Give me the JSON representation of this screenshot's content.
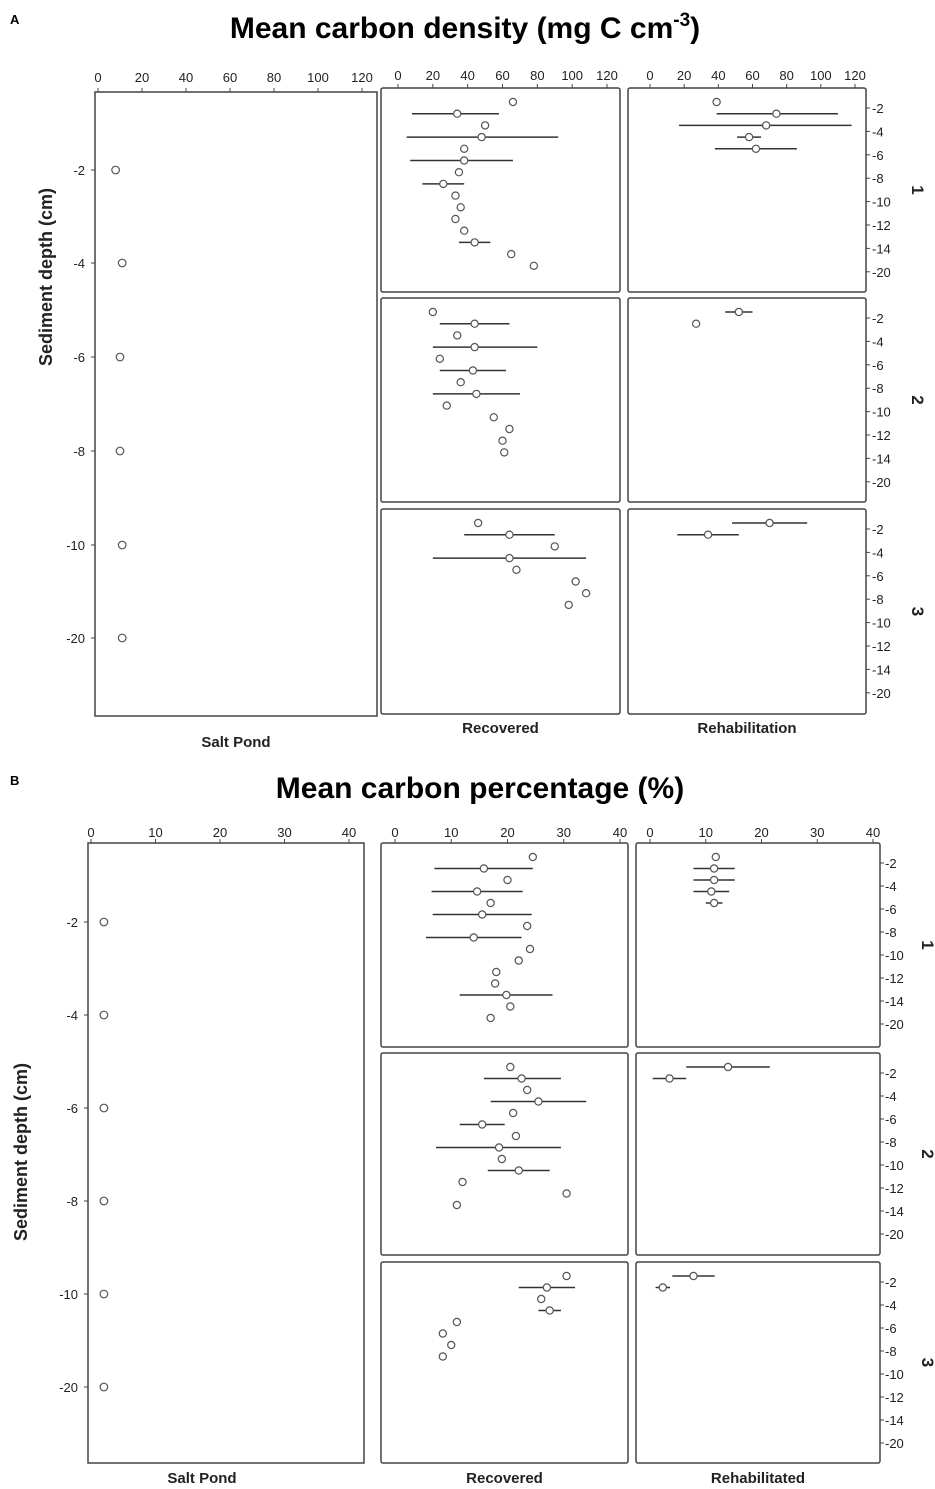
{
  "chart_data": [
    {
      "type": "scatter",
      "panel_letter": "A",
      "title": "Mean carbon density (mg C cm",
      "title_superscript": "-3",
      "title_suffix": ")",
      "ylabel": "Sediment depth (cm)",
      "x_ticks": [
        "0",
        "20",
        "40",
        "60",
        "80",
        "100",
        "120"
      ],
      "xlim": [
        0,
        120
      ],
      "salt_pond": {
        "label": "Salt Pond",
        "y_ticks": [
          "-2",
          "-4",
          "-6",
          "-8",
          "-10",
          "-20"
        ],
        "points": [
          {
            "depth": "-2",
            "x": 8
          },
          {
            "depth": "-4",
            "x": 11
          },
          {
            "depth": "-6",
            "x": 10
          },
          {
            "depth": "-8",
            "x": 10
          },
          {
            "depth": "-10",
            "x": 11
          },
          {
            "depth": "-20",
            "x": 11
          }
        ]
      },
      "depth_ticks": [
        "-2",
        "-4",
        "-6",
        "-8",
        "-10",
        "-12",
        "-14",
        "-20"
      ],
      "columns": [
        {
          "key": "recovered",
          "label": "Recovered"
        },
        {
          "key": "rehab",
          "label": "Rehabilitation"
        }
      ],
      "facets": [
        {
          "label": "1",
          "recovered": [
            {
              "x": 66
            },
            {
              "x": 34,
              "lo": 8,
              "hi": 58
            },
            {
              "x": 50
            },
            {
              "x": 48,
              "lo": 5,
              "hi": 92
            },
            {
              "x": 38
            },
            {
              "x": 38,
              "lo": 7,
              "hi": 66
            },
            {
              "x": 35
            },
            {
              "x": 26,
              "lo": 14,
              "hi": 38
            },
            {
              "x": 33
            },
            {
              "x": 36
            },
            {
              "x": 33
            },
            {
              "x": 38
            },
            {
              "x": 44,
              "lo": 35,
              "hi": 53
            },
            {
              "x": 65
            },
            {
              "x": 78
            }
          ],
          "rehab": [
            {
              "x": 39,
              "lo": 37,
              "hi": 41
            },
            {
              "x": 74,
              "lo": 39,
              "hi": 110
            },
            {
              "x": 68,
              "lo": 17,
              "hi": 118
            },
            {
              "x": 58,
              "lo": 51,
              "hi": 65
            },
            {
              "x": 62,
              "lo": 38,
              "hi": 86
            }
          ]
        },
        {
          "label": "2",
          "recovered": [
            {
              "x": 20
            },
            {
              "x": 44,
              "lo": 24,
              "hi": 64
            },
            {
              "x": 34
            },
            {
              "x": 44,
              "lo": 20,
              "hi": 80
            },
            {
              "x": 24
            },
            {
              "x": 43,
              "lo": 24,
              "hi": 62
            },
            {
              "x": 36
            },
            {
              "x": 45,
              "lo": 20,
              "hi": 70
            },
            {
              "x": 28
            },
            {
              "x": 55,
              "lo": 53,
              "hi": 57
            },
            {
              "x": 64
            },
            {
              "x": 60
            },
            {
              "x": 61
            }
          ],
          "rehab": [
            {
              "x": 52,
              "lo": 44,
              "hi": 60
            },
            {
              "x": 27,
              "lo": 26,
              "hi": 28
            }
          ]
        },
        {
          "label": "3",
          "recovered": [
            {
              "x": 46
            },
            {
              "x": 64,
              "lo": 38,
              "hi": 90
            },
            {
              "x": 90
            },
            {
              "x": 64,
              "lo": 20,
              "hi": 108
            },
            {
              "x": 68
            },
            {
              "x": 102
            },
            {
              "x": 108
            },
            {
              "x": 98
            }
          ],
          "rehab": [
            {
              "x": 70,
              "lo": 48,
              "hi": 92
            },
            {
              "x": 34,
              "lo": 16,
              "hi": 52
            }
          ]
        }
      ]
    },
    {
      "type": "scatter",
      "panel_letter": "B",
      "title": "Mean carbon percentage (%)",
      "ylabel": "Sediment depth (cm)",
      "x_ticks": [
        "0",
        "10",
        "20",
        "30",
        "40"
      ],
      "xlim": [
        0,
        40
      ],
      "salt_pond": {
        "label": "Salt Pond",
        "y_ticks": [
          "-2",
          "-4",
          "-6",
          "-8",
          "-10",
          "-20"
        ],
        "points": [
          {
            "depth": "-2",
            "x": 2
          },
          {
            "depth": "-4",
            "x": 2
          },
          {
            "depth": "-6",
            "x": 2
          },
          {
            "depth": "-8",
            "x": 2
          },
          {
            "depth": "-10",
            "x": 2
          },
          {
            "depth": "-20",
            "x": 2
          }
        ]
      },
      "depth_ticks": [
        "-2",
        "-4",
        "-6",
        "-8",
        "-10",
        "-12",
        "-14",
        "-20"
      ],
      "columns": [
        {
          "key": "recovered",
          "label": "Recovered"
        },
        {
          "key": "rehab",
          "label": "Rehabilitated"
        }
      ],
      "facets": [
        {
          "label": "1",
          "recovered": [
            {
              "x": 24.5
            },
            {
              "x": 15.8,
              "lo": 7,
              "hi": 24.5
            },
            {
              "x": 20
            },
            {
              "x": 14.6,
              "lo": 6.5,
              "hi": 22.7
            },
            {
              "x": 17
            },
            {
              "x": 15.5,
              "lo": 6.7,
              "hi": 24.3
            },
            {
              "x": 23.5
            },
            {
              "x": 14,
              "lo": 5.5,
              "hi": 22.5
            },
            {
              "x": 24
            },
            {
              "x": 22
            },
            {
              "x": 18
            },
            {
              "x": 17.8
            },
            {
              "x": 19.8,
              "lo": 11.5,
              "hi": 28
            },
            {
              "x": 20.5
            },
            {
              "x": 17
            }
          ],
          "rehab": [
            {
              "x": 11.8,
              "lo": 11.3,
              "hi": 12.3
            },
            {
              "x": 11.5,
              "lo": 7.8,
              "hi": 15.2
            },
            {
              "x": 11.5,
              "lo": 7.8,
              "hi": 15.2
            },
            {
              "x": 11,
              "lo": 7.8,
              "hi": 14.2
            },
            {
              "x": 11.5,
              "lo": 10,
              "hi": 13
            }
          ]
        },
        {
          "label": "2",
          "recovered": [
            {
              "x": 20.5
            },
            {
              "x": 22.5,
              "lo": 15.8,
              "hi": 29.5
            },
            {
              "x": 23.5
            },
            {
              "x": 25.5,
              "lo": 17,
              "hi": 34
            },
            {
              "x": 21
            },
            {
              "x": 15.5,
              "lo": 11.5,
              "hi": 19.5
            },
            {
              "x": 21.5
            },
            {
              "x": 18.5,
              "lo": 7.3,
              "hi": 29.5
            },
            {
              "x": 19
            },
            {
              "x": 22,
              "lo": 16.5,
              "hi": 27.5
            },
            {
              "x": 12
            },
            {
              "x": 30.5
            },
            {
              "x": 11
            }
          ],
          "rehab": [
            {
              "x": 14,
              "lo": 6.5,
              "hi": 21.5
            },
            {
              "x": 3.5,
              "lo": 0.5,
              "hi": 6.5
            }
          ]
        },
        {
          "label": "3",
          "recovered": [
            {
              "x": 30.5
            },
            {
              "x": 27,
              "lo": 22,
              "hi": 32
            },
            {
              "x": 26
            },
            {
              "x": 27.5,
              "lo": 25.5,
              "hi": 29.5
            },
            {
              "x": 11
            },
            {
              "x": 8.5
            },
            {
              "x": 10
            },
            {
              "x": 8.5
            }
          ],
          "rehab": [
            {
              "x": 7.8,
              "lo": 4,
              "hi": 11.6
            },
            {
              "x": 2.3,
              "lo": 1,
              "hi": 3.6
            }
          ]
        }
      ]
    }
  ]
}
